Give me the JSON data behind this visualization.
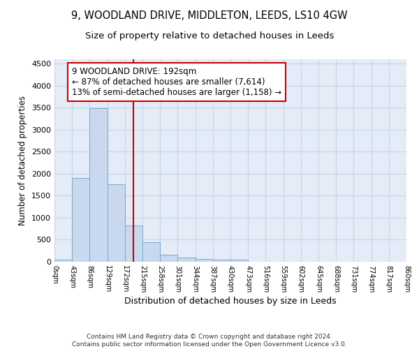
{
  "title1": "9, WOODLAND DRIVE, MIDDLETON, LEEDS, LS10 4GW",
  "title2": "Size of property relative to detached houses in Leeds",
  "xlabel": "Distribution of detached houses by size in Leeds",
  "ylabel": "Number of detached properties",
  "footnote": "Contains HM Land Registry data © Crown copyright and database right 2024.\nContains public sector information licensed under the Open Government Licence v3.0.",
  "bin_edges": [
    0,
    43,
    86,
    129,
    172,
    215,
    258,
    301,
    344,
    387,
    430,
    473,
    516,
    559,
    602,
    645,
    688,
    731,
    774,
    817,
    860
  ],
  "bar_heights": [
    50,
    1900,
    3490,
    1760,
    820,
    450,
    160,
    100,
    70,
    55,
    40,
    0,
    0,
    0,
    0,
    0,
    0,
    0,
    0,
    0
  ],
  "bar_color": "#c8d8ee",
  "bar_edge_color": "#7aaad0",
  "vline_x": 192,
  "vline_color": "#cc0000",
  "ylim": [
    0,
    4600
  ],
  "yticks": [
    0,
    500,
    1000,
    1500,
    2000,
    2500,
    3000,
    3500,
    4000,
    4500
  ],
  "annotation_box_text": "9 WOODLAND DRIVE: 192sqm\n← 87% of detached houses are smaller (7,614)\n13% of semi-detached houses are larger (1,158) →",
  "annotation_box_color": "#cc0000",
  "annotation_box_bg": "#ffffff",
  "grid_color": "#c8d4e8",
  "bg_color": "#e4ecf8",
  "title1_fontsize": 10.5,
  "title2_fontsize": 9.5,
  "xlabel_fontsize": 9,
  "ylabel_fontsize": 8.5,
  "annot_fontsize": 8.5
}
